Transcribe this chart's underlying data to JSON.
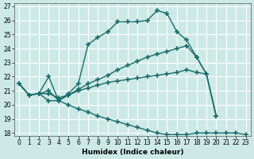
{
  "xlabel": "Humidex (Indice chaleur)",
  "bg_color": "#cce9e6",
  "grid_color": "#b0d8d4",
  "line_color": "#1a6b6b",
  "line_width": 1.0,
  "marker": "+",
  "marker_size": 4,
  "xlim": [
    -0.5,
    23.5
  ],
  "ylim": [
    17.8,
    27.2
  ],
  "yticks": [
    18,
    19,
    20,
    21,
    22,
    23,
    24,
    25,
    26,
    27
  ],
  "xticks": [
    0,
    1,
    2,
    3,
    4,
    5,
    6,
    7,
    8,
    9,
    10,
    11,
    12,
    13,
    14,
    15,
    16,
    17,
    18,
    19,
    20,
    21,
    22,
    23
  ],
  "curves": [
    {
      "x": [
        0,
        1,
        2,
        3,
        4,
        5,
        6,
        7,
        8,
        9,
        10,
        11,
        12,
        13,
        14,
        15,
        16,
        17,
        18,
        19,
        20
      ],
      "y": [
        21.5,
        20.7,
        20.8,
        22.0,
        20.3,
        20.8,
        21.5,
        24.3,
        24.8,
        25.2,
        25.9,
        25.9,
        25.9,
        26.0,
        26.7,
        26.5,
        25.2,
        24.6,
        23.4,
        22.2,
        19.2
      ]
    },
    {
      "x": [
        0,
        1,
        2,
        3,
        4,
        5,
        6,
        7,
        8,
        9,
        10,
        11,
        12,
        13,
        14,
        15,
        16,
        17,
        18,
        19,
        20
      ],
      "y": [
        21.5,
        20.7,
        20.8,
        21.0,
        20.3,
        20.7,
        21.1,
        21.5,
        21.8,
        22.1,
        22.5,
        22.8,
        23.1,
        23.4,
        23.6,
        23.8,
        24.0,
        24.2,
        23.4,
        22.2,
        19.2
      ]
    },
    {
      "x": [
        0,
        1,
        2,
        3,
        4,
        5,
        6,
        7,
        8,
        9,
        10,
        11,
        12,
        13,
        14,
        15,
        16,
        17,
        18,
        19,
        20
      ],
      "y": [
        21.5,
        20.7,
        20.8,
        20.8,
        20.5,
        20.7,
        21.0,
        21.2,
        21.4,
        21.6,
        21.7,
        21.8,
        21.9,
        22.0,
        22.1,
        22.2,
        22.3,
        22.5,
        22.3,
        22.2,
        19.2
      ]
    },
    {
      "x": [
        0,
        1,
        2,
        3,
        4,
        5,
        6,
        7,
        8,
        9,
        10,
        11,
        12,
        13,
        14,
        15,
        16,
        17,
        18,
        19,
        20,
        21,
        22,
        23
      ],
      "y": [
        21.5,
        20.7,
        20.8,
        20.3,
        20.3,
        20.0,
        19.7,
        19.5,
        19.2,
        19.0,
        18.8,
        18.6,
        18.4,
        18.2,
        18.0,
        17.9,
        17.9,
        17.9,
        18.0,
        18.0,
        18.0,
        18.0,
        18.0,
        17.9
      ]
    }
  ]
}
